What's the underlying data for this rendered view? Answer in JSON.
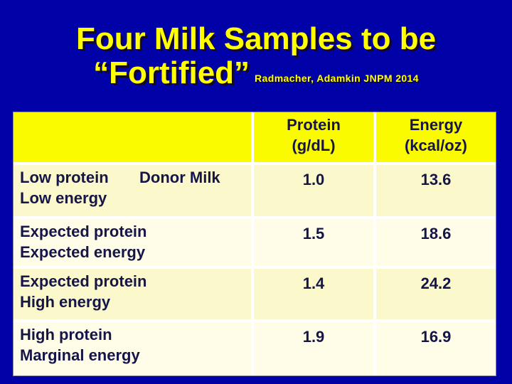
{
  "slide": {
    "title_line1": "Four Milk Samples to be",
    "title_line2": "“Fortified”",
    "citation": "Radmacher, Adamkin JNPM 2014"
  },
  "table": {
    "header": {
      "protein_label": "Protein",
      "protein_unit": "(g/dL)",
      "energy_label": "Energy",
      "energy_unit": "(kcal/oz)"
    },
    "rows": [
      {
        "label_line1": "Low protein",
        "label_note": "Donor Milk",
        "label_line2": "Low energy",
        "protein_gdl": "1.0",
        "energy_kcaloz": "13.6"
      },
      {
        "label_line1": "Expected protein",
        "label_note": "",
        "label_line2": "Expected energy",
        "protein_gdl": "1.5",
        "energy_kcaloz": "18.6"
      },
      {
        "label_line1": "Expected protein",
        "label_note": "",
        "label_line2": "High energy",
        "protein_gdl": "1.4",
        "energy_kcaloz": "24.2"
      },
      {
        "label_line1": "High protein",
        "label_note": "",
        "label_line2": "Marginal energy",
        "protein_gdl": "1.9",
        "energy_kcaloz": "16.9"
      }
    ]
  },
  "colors": {
    "slide_background": "#0101A8",
    "title_text": "#FFFF00",
    "header_cell_bg": "#FBFB00",
    "row_bg_odd": "#FBF9CC",
    "row_bg_even": "#FFFDE8",
    "cell_text": "#151548",
    "grid_line": "#FFFFFF"
  }
}
